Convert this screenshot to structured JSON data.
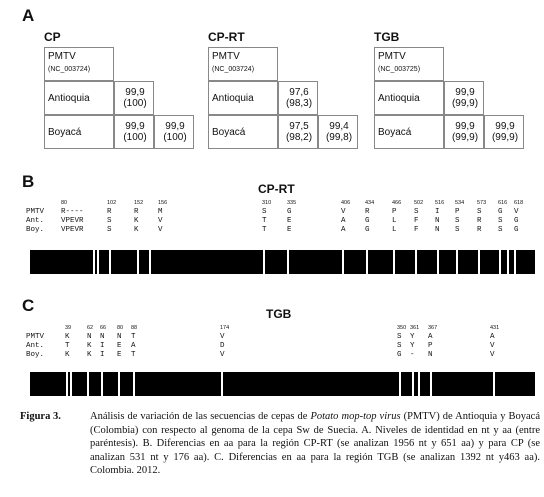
{
  "panelA": {
    "label": "A",
    "boxes": [
      {
        "title": "CP",
        "ref_name": "PMTV",
        "ref_acc": "(NC_003724)",
        "row1_name": "Antioquia",
        "row1_val1": "99,9",
        "row1_val2": "(100)",
        "row2_name": "Boyacá",
        "row2_val1": "99,9",
        "row2_val2": "(100)",
        "row2_val3": "99,9",
        "row2_val4": "(100)"
      },
      {
        "title": "CP-RT",
        "ref_name": "PMTV",
        "ref_acc": "(NC_003724)",
        "row1_name": "Antioquia",
        "row1_val1": "97,6",
        "row1_val2": "(98,3)",
        "row2_name": "Boyacá",
        "row2_val1": "97,5",
        "row2_val2": "(98,2)",
        "row2_val3": "99,4",
        "row2_val4": "(99,8)"
      },
      {
        "title": "TGB",
        "ref_name": "PMTV",
        "ref_acc": "(NC_003725)",
        "row1_name": "Antioquia",
        "row1_val1": "99,9",
        "row1_val2": "(99,9)",
        "row2_name": "Boyacá",
        "row2_val1": "99,9",
        "row2_val2": "(99,9)",
        "row2_val3": "99,9",
        "row2_val4": "(99,9)"
      }
    ]
  },
  "panelB": {
    "label": "B",
    "title": "CP-RT",
    "row_names": [
      "PMTV",
      "Ant.",
      "Boy."
    ],
    "columns": [
      {
        "pos": "80",
        "pmtv": "R----",
        "ant": "VPEVR",
        "boy": "VPEVR"
      },
      {
        "pos": "102",
        "pmtv": "R",
        "ant": "S",
        "boy": "S"
      },
      {
        "pos": "152",
        "pmtv": "R",
        "ant": "K",
        "boy": "K"
      },
      {
        "pos": "156",
        "pmtv": "M",
        "ant": "V",
        "boy": "V"
      },
      {
        "pos": "310",
        "pmtv": "S",
        "ant": "T",
        "boy": "T"
      },
      {
        "pos": "335",
        "pmtv": "G",
        "ant": "E",
        "boy": "E"
      },
      {
        "pos": "406",
        "pmtv": "V",
        "ant": "A",
        "boy": "A"
      },
      {
        "pos": "434",
        "pmtv": "R",
        "ant": "G",
        "boy": "G"
      },
      {
        "pos": "466",
        "pmtv": "P",
        "ant": "L",
        "boy": "L"
      },
      {
        "pos": "502",
        "pmtv": "S",
        "ant": "F",
        "boy": "F"
      },
      {
        "pos": "516",
        "pmtv": "I",
        "ant": "N",
        "boy": "N"
      },
      {
        "pos": "534",
        "pmtv": "P",
        "ant": "S",
        "boy": "S"
      },
      {
        "pos": "573",
        "pmtv": "S",
        "ant": "R",
        "boy": "R"
      },
      {
        "pos": "616",
        "pmtv": "G",
        "ant": "S",
        "boy": "S"
      },
      {
        "pos": "618",
        "pmtv": "V",
        "ant": "G",
        "boy": "G"
      }
    ]
  },
  "panelC": {
    "label": "C",
    "title": "TGB",
    "row_names": [
      "PMTV",
      "Ant.",
      "Boy."
    ],
    "columns": [
      {
        "pos": "39",
        "pmtv": "K",
        "ant": "T",
        "boy": "K"
      },
      {
        "pos": "62",
        "pmtv": "N",
        "ant": "K",
        "boy": "K"
      },
      {
        "pos": "66",
        "pmtv": "N",
        "ant": "I",
        "boy": "I"
      },
      {
        "pos": "80",
        "pmtv": "N",
        "ant": "E",
        "boy": "E"
      },
      {
        "pos": "88",
        "pmtv": "T",
        "ant": "A",
        "boy": "T"
      },
      {
        "pos": "174",
        "pmtv": "V",
        "ant": "D",
        "boy": "V"
      },
      {
        "pos": "350",
        "pmtv": "S",
        "ant": "S",
        "boy": "G"
      },
      {
        "pos": "361",
        "pmtv": "Y",
        "ant": "Y",
        "boy": "-"
      },
      {
        "pos": "367",
        "pmtv": "A",
        "ant": "P",
        "boy": "N"
      },
      {
        "pos": "431",
        "pmtv": "A",
        "ant": "V",
        "boy": "V"
      }
    ]
  },
  "caption": {
    "label": "Figura 3.",
    "text_before": "Análisis de variación de las secuencias de cepas de ",
    "italic": "Potato mop-top virus",
    "text_after": " (PMTV) de Antioquia y Boyacá (Colombia) con respecto al genoma de la cepa Sw de Suecia. A. Niveles de identidad en nt y aa (entre paréntesis). B. Diferencias en aa para la región CP-RT (se analizan 1956 nt y 651 aa) y para CP (se analizan 531 nt y 176 aa). C. Diferencias en aa para la región TGB (se analizan 1392 nt y463 aa). Colombia. 2012."
  }
}
